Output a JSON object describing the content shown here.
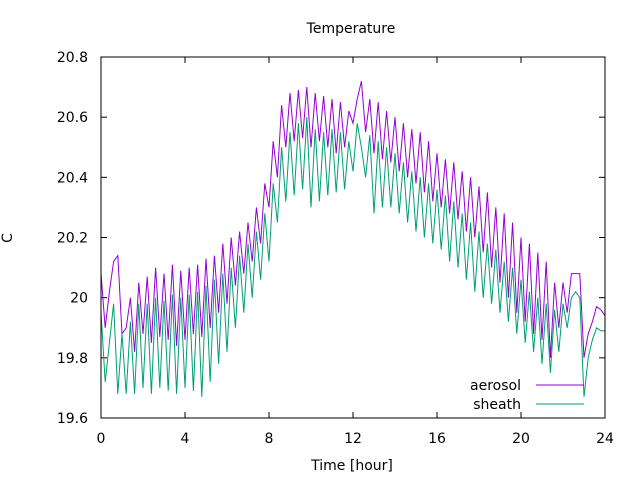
{
  "chart_data": {
    "type": "line",
    "title": "Temperature",
    "xlabel": "Time [hour]",
    "ylabel": "C",
    "xlim": [
      0,
      24
    ],
    "ylim": [
      19.6,
      20.8
    ],
    "x_ticks": [
      0,
      4,
      8,
      12,
      16,
      20,
      24
    ],
    "x_tick_labels": [
      "0",
      "4",
      "8",
      "12",
      "16",
      "20",
      "24"
    ],
    "y_ticks": [
      19.6,
      19.8,
      20.0,
      20.2,
      20.4,
      20.6,
      20.8
    ],
    "y_tick_labels": [
      "19.6",
      "19.8",
      "20",
      "20.2",
      "20.4",
      "20.6",
      "20.8"
    ],
    "grid": false,
    "legend_position": "bottom-right",
    "series": [
      {
        "name": "aerosol",
        "color": "#9400d3",
        "x": [
          0.0,
          0.2,
          0.4,
          0.6,
          0.8,
          1.0,
          1.2,
          1.4,
          1.6,
          1.8,
          2.0,
          2.2,
          2.4,
          2.6,
          2.8,
          3.0,
          3.2,
          3.4,
          3.6,
          3.8,
          4.0,
          4.2,
          4.4,
          4.6,
          4.8,
          5.0,
          5.2,
          5.4,
          5.6,
          5.8,
          6.0,
          6.2,
          6.4,
          6.6,
          6.8,
          7.0,
          7.2,
          7.4,
          7.6,
          7.8,
          8.0,
          8.2,
          8.4,
          8.6,
          8.8,
          9.0,
          9.2,
          9.4,
          9.6,
          9.8,
          10.0,
          10.2,
          10.4,
          10.6,
          10.8,
          11.0,
          11.2,
          11.4,
          11.6,
          11.8,
          12.0,
          12.2,
          12.4,
          12.6,
          12.8,
          13.0,
          13.2,
          13.4,
          13.6,
          13.8,
          14.0,
          14.2,
          14.4,
          14.6,
          14.8,
          15.0,
          15.2,
          15.4,
          15.6,
          15.8,
          16.0,
          16.2,
          16.4,
          16.6,
          16.8,
          17.0,
          17.2,
          17.4,
          17.6,
          17.8,
          18.0,
          18.2,
          18.4,
          18.6,
          18.8,
          19.0,
          19.2,
          19.4,
          19.6,
          19.8,
          20.0,
          20.2,
          20.4,
          20.6,
          20.8,
          21.0,
          21.2,
          21.4,
          21.6,
          21.8,
          22.0,
          22.2,
          22.4,
          22.6,
          22.8,
          23.0,
          23.2,
          23.4,
          23.6,
          23.8,
          24.0
        ],
        "y": [
          20.08,
          19.9,
          20.02,
          20.12,
          20.14,
          19.88,
          19.9,
          20.0,
          19.82,
          20.05,
          19.88,
          20.07,
          19.85,
          20.1,
          19.87,
          20.08,
          19.86,
          20.11,
          19.84,
          20.09,
          19.86,
          20.1,
          19.88,
          20.11,
          19.87,
          20.13,
          19.9,
          20.14,
          19.95,
          20.18,
          19.98,
          20.2,
          20.04,
          20.22,
          20.08,
          20.25,
          20.12,
          20.3,
          20.18,
          20.38,
          20.3,
          20.52,
          20.4,
          20.64,
          20.5,
          20.68,
          20.52,
          20.69,
          20.53,
          20.7,
          20.5,
          20.68,
          20.52,
          20.67,
          20.5,
          20.66,
          20.48,
          20.65,
          20.5,
          20.62,
          20.58,
          20.66,
          20.72,
          20.55,
          20.66,
          20.48,
          20.65,
          20.46,
          20.62,
          20.45,
          20.6,
          20.42,
          20.58,
          20.4,
          20.56,
          20.38,
          20.55,
          20.35,
          20.52,
          20.32,
          20.48,
          20.3,
          20.46,
          20.28,
          20.45,
          20.26,
          20.42,
          20.22,
          20.4,
          20.2,
          20.37,
          20.15,
          20.35,
          20.1,
          20.3,
          20.05,
          20.28,
          20.0,
          20.25,
          19.95,
          20.2,
          19.92,
          20.18,
          19.88,
          20.15,
          19.86,
          20.12,
          19.8,
          20.05,
          19.9,
          20.05,
          19.95,
          20.08,
          20.08,
          20.08,
          19.8,
          19.88,
          19.92,
          19.97,
          19.96,
          19.94
        ]
      },
      {
        "name": "sheath",
        "color": "#009e73",
        "x": [
          0.0,
          0.2,
          0.4,
          0.6,
          0.8,
          1.0,
          1.2,
          1.4,
          1.6,
          1.8,
          2.0,
          2.2,
          2.4,
          2.6,
          2.8,
          3.0,
          3.2,
          3.4,
          3.6,
          3.8,
          4.0,
          4.2,
          4.4,
          4.6,
          4.8,
          5.0,
          5.2,
          5.4,
          5.6,
          5.8,
          6.0,
          6.2,
          6.4,
          6.6,
          6.8,
          7.0,
          7.2,
          7.4,
          7.6,
          7.8,
          8.0,
          8.2,
          8.4,
          8.6,
          8.8,
          9.0,
          9.2,
          9.4,
          9.6,
          9.8,
          10.0,
          10.2,
          10.4,
          10.6,
          10.8,
          11.0,
          11.2,
          11.4,
          11.6,
          11.8,
          12.0,
          12.2,
          12.4,
          12.6,
          12.8,
          13.0,
          13.2,
          13.4,
          13.6,
          13.8,
          14.0,
          14.2,
          14.4,
          14.6,
          14.8,
          15.0,
          15.2,
          15.4,
          15.6,
          15.8,
          16.0,
          16.2,
          16.4,
          16.6,
          16.8,
          17.0,
          17.2,
          17.4,
          17.6,
          17.8,
          18.0,
          18.2,
          18.4,
          18.6,
          18.8,
          19.0,
          19.2,
          19.4,
          19.6,
          19.8,
          20.0,
          20.2,
          20.4,
          20.6,
          20.8,
          21.0,
          21.2,
          21.4,
          21.6,
          21.8,
          22.0,
          22.2,
          22.4,
          22.6,
          22.8,
          23.0,
          23.2,
          23.4,
          23.6,
          23.8,
          24.0
        ],
        "y": [
          19.95,
          19.72,
          19.85,
          19.98,
          19.68,
          19.88,
          19.68,
          19.92,
          19.68,
          19.98,
          19.7,
          19.98,
          19.68,
          20.0,
          19.7,
          19.99,
          19.69,
          20.01,
          19.68,
          20.0,
          19.7,
          20.01,
          19.69,
          20.02,
          19.67,
          20.04,
          19.72,
          20.06,
          19.78,
          20.08,
          19.82,
          20.1,
          19.9,
          20.14,
          19.95,
          20.18,
          20.0,
          20.22,
          20.06,
          20.28,
          20.12,
          20.38,
          20.25,
          20.5,
          20.32,
          20.55,
          20.34,
          20.58,
          20.36,
          20.6,
          20.3,
          20.56,
          20.32,
          20.55,
          20.34,
          20.56,
          20.35,
          20.55,
          20.36,
          20.52,
          20.42,
          20.58,
          20.5,
          20.4,
          20.54,
          20.28,
          20.52,
          20.3,
          20.5,
          20.3,
          20.48,
          20.28,
          20.45,
          20.25,
          20.42,
          20.22,
          20.4,
          20.2,
          20.38,
          20.18,
          20.36,
          20.16,
          20.34,
          20.12,
          20.32,
          20.1,
          20.28,
          20.06,
          20.25,
          20.02,
          20.22,
          20.0,
          20.18,
          19.98,
          20.16,
          19.95,
          20.12,
          19.92,
          20.1,
          19.88,
          20.06,
          19.85,
          20.02,
          19.82,
          20.0,
          19.78,
          19.98,
          19.75,
          19.96,
          19.82,
          19.98,
          19.9,
          20.0,
          20.02,
          20.0,
          19.67,
          19.8,
          19.86,
          19.9,
          19.89,
          19.89
        ]
      }
    ]
  }
}
